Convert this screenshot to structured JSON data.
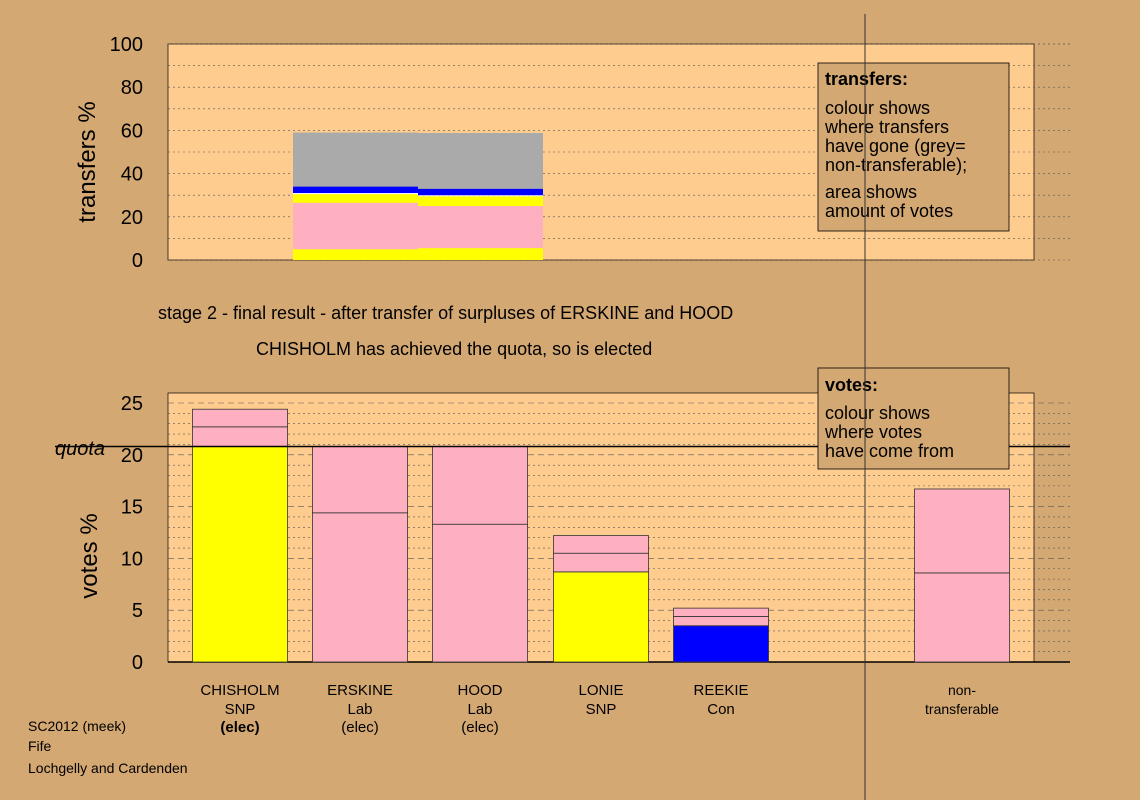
{
  "chart_data": [
    {
      "type": "bar",
      "stacked": true,
      "ylabel": "transfers %",
      "ylim": [
        0,
        100
      ],
      "yticks": [
        0,
        20,
        40,
        60,
        80,
        100
      ],
      "grid": "dotted",
      "bars": [
        {
          "source": "ERSKINE",
          "segments": [
            {
              "color": "#ffff00",
              "value": 5
            },
            {
              "color": "#ffb0c0",
              "value": 21.5
            },
            {
              "color": "#ffff00",
              "value": 4
            },
            {
              "color": "#ffffff",
              "value": 0.5
            },
            {
              "color": "#0000ff",
              "value": 3
            },
            {
              "color": "#aaaaaa",
              "value": 25
            }
          ]
        },
        {
          "source": "HOOD",
          "segments": [
            {
              "color": "#ffff00",
              "value": 5.5
            },
            {
              "color": "#ffb0c0",
              "value": 19.5
            },
            {
              "color": "#ffff00",
              "value": 4.5
            },
            {
              "color": "#ffffff",
              "value": 0.5
            },
            {
              "color": "#0000ff",
              "value": 3
            },
            {
              "color": "#aaaaaa",
              "value": 25.8
            }
          ]
        }
      ]
    },
    {
      "type": "bar",
      "stacked": true,
      "ylabel": "votes %",
      "ylim": [
        0,
        26
      ],
      "yticks": [
        0,
        5,
        10,
        15,
        20,
        25
      ],
      "quota": 20.8,
      "quota_label": "quota",
      "grid": "dashed",
      "candidates": [
        {
          "name": "CHISHOLM",
          "party": "SNP",
          "status": "(elec)",
          "bold_status": true,
          "segments": [
            {
              "color": "#ffff00",
              "value": 20.8
            },
            {
              "color": "#ffb0c0",
              "value": 1.9
            },
            {
              "color": "#ffb0c0",
              "value": 1.7
            }
          ]
        },
        {
          "name": "ERSKINE",
          "party": "Lab",
          "status": "(elec)",
          "bold_status": false,
          "segments": [
            {
              "color": "#ffb0c0",
              "value": 14.4
            },
            {
              "color": "#ffb0c0",
              "value": 6.4
            }
          ]
        },
        {
          "name": "HOOD",
          "party": "Lab",
          "status": "(elec)",
          "bold_status": false,
          "segments": [
            {
              "color": "#ffb0c0",
              "value": 13.3
            },
            {
              "color": "#ffb0c0",
              "value": 7.5
            }
          ]
        },
        {
          "name": "LONIE",
          "party": "SNP",
          "status": "",
          "bold_status": false,
          "segments": [
            {
              "color": "#ffff00",
              "value": 8.7
            },
            {
              "color": "#ffb0c0",
              "value": 1.8
            },
            {
              "color": "#ffb0c0",
              "value": 1.7
            }
          ]
        },
        {
          "name": "REEKIE",
          "party": "Con",
          "status": "",
          "bold_status": false,
          "segments": [
            {
              "color": "#0000ff",
              "value": 3.5
            },
            {
              "color": "#ffb0c0",
              "value": 0.9
            },
            {
              "color": "#ffb0c0",
              "value": 0.8
            }
          ]
        },
        {
          "name": "non-",
          "party": "transferable",
          "status": "",
          "bold_status": false,
          "separated": true,
          "segments": [
            {
              "color": "#ffb0c0",
              "value": 8.6
            },
            {
              "color": "#ffb0c0",
              "value": 8.1
            }
          ]
        }
      ]
    }
  ],
  "stage_text": "stage 2 - final result - after transfer of surpluses of ERSKINE and HOOD",
  "result_text": "CHISHOLM has achieved the quota, so is elected",
  "transfers_legend": {
    "title": "transfers:",
    "lines1": [
      "colour shows",
      "where transfers",
      "have gone (grey=",
      "non-transferable);"
    ],
    "lines2": [
      "area shows",
      "amount of votes"
    ]
  },
  "votes_legend": {
    "title": "votes:",
    "lines": [
      "colour shows",
      "where votes",
      "have come from"
    ]
  },
  "footer": [
    "SC2012 (meek)",
    "Fife",
    "Lochgelly and Cardenden"
  ],
  "colors": {
    "background": "#d4a873",
    "plot_bg": "#ffcc8f",
    "legend_bg": "#d4a873"
  }
}
